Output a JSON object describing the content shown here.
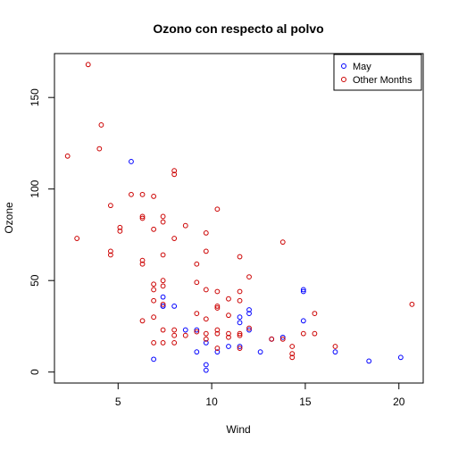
{
  "chart_data": {
    "type": "scatter",
    "title": "Ozono con respecto al polvo",
    "xlabel": "Wind",
    "ylabel": "Ozone",
    "xlim": [
      1.6,
      21.3
    ],
    "ylim": [
      -6,
      174
    ],
    "x_ticks": [
      5,
      10,
      15,
      20
    ],
    "y_ticks": [
      0,
      50,
      100,
      150
    ],
    "grid": false,
    "legend_position": "top-right",
    "series": [
      {
        "name": "May",
        "color": "#0000ff",
        "marker": "open-circle",
        "points": [
          [
            5.7,
            115
          ],
          [
            6.9,
            7
          ],
          [
            7.4,
            41
          ],
          [
            7.4,
            36
          ],
          [
            7.4,
            36
          ],
          [
            8.0,
            36
          ],
          [
            8.6,
            23
          ],
          [
            9.2,
            23
          ],
          [
            9.2,
            11
          ],
          [
            9.7,
            16
          ],
          [
            9.7,
            4
          ],
          [
            9.7,
            1
          ],
          [
            10.3,
            11
          ],
          [
            10.9,
            14
          ],
          [
            11.5,
            30
          ],
          [
            11.5,
            27
          ],
          [
            11.5,
            14
          ],
          [
            12.0,
            32
          ],
          [
            12.0,
            34
          ],
          [
            12.0,
            23
          ],
          [
            12.6,
            11
          ],
          [
            13.2,
            18
          ],
          [
            13.8,
            19
          ],
          [
            14.9,
            45
          ],
          [
            14.9,
            44
          ],
          [
            14.9,
            28
          ],
          [
            16.6,
            11
          ],
          [
            18.4,
            6
          ],
          [
            20.1,
            8
          ]
        ]
      },
      {
        "name": "Other Months",
        "color": "#cc0000",
        "marker": "open-circle",
        "points": [
          [
            2.3,
            118
          ],
          [
            2.8,
            73
          ],
          [
            3.4,
            168
          ],
          [
            4.0,
            122
          ],
          [
            4.1,
            135
          ],
          [
            4.6,
            91
          ],
          [
            4.6,
            66
          ],
          [
            4.6,
            64
          ],
          [
            5.1,
            79
          ],
          [
            5.1,
            77
          ],
          [
            5.7,
            97
          ],
          [
            6.3,
            97
          ],
          [
            6.3,
            85
          ],
          [
            6.3,
            84
          ],
          [
            6.3,
            61
          ],
          [
            6.3,
            59
          ],
          [
            6.3,
            28
          ],
          [
            6.9,
            96
          ],
          [
            6.9,
            78
          ],
          [
            6.9,
            48
          ],
          [
            6.9,
            45
          ],
          [
            6.9,
            39
          ],
          [
            6.9,
            30
          ],
          [
            6.9,
            16
          ],
          [
            7.4,
            85
          ],
          [
            7.4,
            82
          ],
          [
            7.4,
            64
          ],
          [
            7.4,
            50
          ],
          [
            7.4,
            47
          ],
          [
            7.4,
            37
          ],
          [
            7.4,
            23
          ],
          [
            7.4,
            16
          ],
          [
            8.0,
            110
          ],
          [
            8.0,
            108
          ],
          [
            8.0,
            73
          ],
          [
            8.0,
            23
          ],
          [
            8.0,
            20
          ],
          [
            8.0,
            16
          ],
          [
            8.6,
            80
          ],
          [
            8.6,
            20
          ],
          [
            9.2,
            59
          ],
          [
            9.2,
            49
          ],
          [
            9.2,
            32
          ],
          [
            9.2,
            22
          ],
          [
            9.7,
            76
          ],
          [
            9.7,
            66
          ],
          [
            9.7,
            45
          ],
          [
            9.7,
            29
          ],
          [
            9.7,
            21
          ],
          [
            9.7,
            18
          ],
          [
            10.3,
            89
          ],
          [
            10.3,
            44
          ],
          [
            10.3,
            36
          ],
          [
            10.3,
            35
          ],
          [
            10.3,
            23
          ],
          [
            10.3,
            21
          ],
          [
            10.3,
            13
          ],
          [
            10.9,
            40
          ],
          [
            10.9,
            31
          ],
          [
            10.9,
            21
          ],
          [
            10.9,
            19
          ],
          [
            11.5,
            63
          ],
          [
            11.5,
            44
          ],
          [
            11.5,
            39
          ],
          [
            11.5,
            21
          ],
          [
            11.5,
            20
          ],
          [
            11.5,
            13
          ],
          [
            12.0,
            52
          ],
          [
            12.0,
            24
          ],
          [
            13.2,
            18
          ],
          [
            13.8,
            71
          ],
          [
            13.8,
            18
          ],
          [
            14.3,
            14
          ],
          [
            14.3,
            10
          ],
          [
            14.3,
            8
          ],
          [
            14.9,
            21
          ],
          [
            15.5,
            32
          ],
          [
            15.5,
            21
          ],
          [
            16.6,
            14
          ],
          [
            20.7,
            37
          ]
        ]
      }
    ]
  }
}
